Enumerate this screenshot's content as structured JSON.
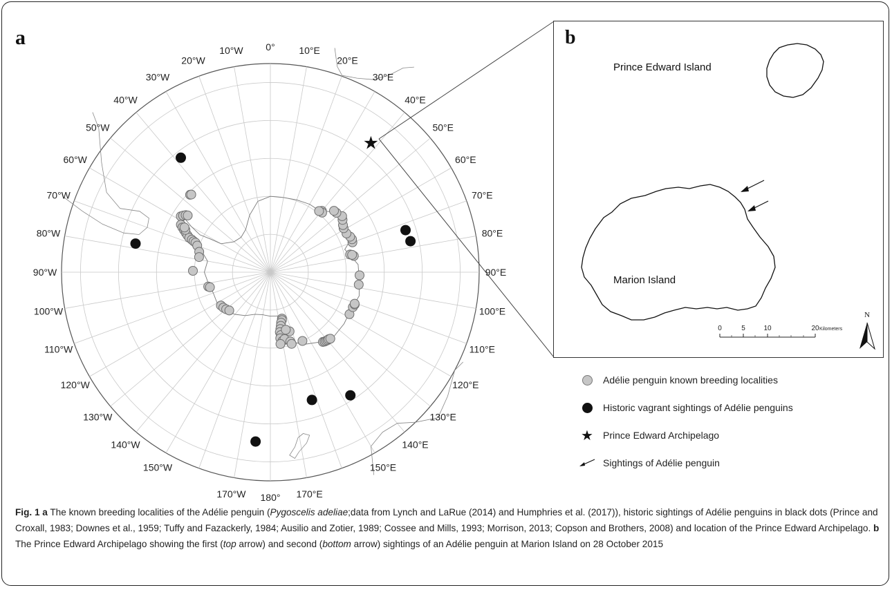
{
  "panel_a": {
    "letter": "a",
    "longitude_labels": [
      {
        "lon": 0,
        "text": "0°"
      },
      {
        "lon": 10,
        "text": "10°E"
      },
      {
        "lon": 20,
        "text": "20°E"
      },
      {
        "lon": 30,
        "text": "30°E"
      },
      {
        "lon": 40,
        "text": "40°E"
      },
      {
        "lon": 50,
        "text": "50°E"
      },
      {
        "lon": 60,
        "text": "60°E"
      },
      {
        "lon": 70,
        "text": "70°E"
      },
      {
        "lon": 80,
        "text": "80°E"
      },
      {
        "lon": 90,
        "text": "90°E"
      },
      {
        "lon": 100,
        "text": "100°E"
      },
      {
        "lon": 110,
        "text": "110°E"
      },
      {
        "lon": 120,
        "text": "120°E"
      },
      {
        "lon": 130,
        "text": "130°E"
      },
      {
        "lon": 140,
        "text": "140°E"
      },
      {
        "lon": 150,
        "text": "150°E"
      },
      {
        "lon": 170,
        "text": "170°E"
      },
      {
        "lon": 180,
        "text": "180°"
      },
      {
        "lon": -170,
        "text": "170°W"
      },
      {
        "lon": -150,
        "text": "150°W"
      },
      {
        "lon": -140,
        "text": "140°W"
      },
      {
        "lon": -130,
        "text": "130°W"
      },
      {
        "lon": -120,
        "text": "120°W"
      },
      {
        "lon": -110,
        "text": "110°W"
      },
      {
        "lon": -100,
        "text": "100°W"
      },
      {
        "lon": -90,
        "text": "90°W"
      },
      {
        "lon": -80,
        "text": "80°W"
      },
      {
        "lon": -70,
        "text": "70°W"
      },
      {
        "lon": -60,
        "text": "60°W"
      },
      {
        "lon": -50,
        "text": "50°W"
      },
      {
        "lon": -40,
        "text": "40°W"
      },
      {
        "lon": -30,
        "text": "30°W"
      },
      {
        "lon": -20,
        "text": "20°W"
      },
      {
        "lon": -10,
        "text": "10°W"
      }
    ],
    "breeding_localities": [
      {
        "lon": -58,
        "lat": -62.2
      },
      {
        "lon": -57,
        "lat": -62.6
      },
      {
        "lon": -56,
        "lat": -63.1
      },
      {
        "lon": -55.5,
        "lat": -63.6
      },
      {
        "lon": -46,
        "lat": -60.6
      },
      {
        "lon": -45.5,
        "lat": -60.8
      },
      {
        "lon": -62,
        "lat": -63.3
      },
      {
        "lon": -63,
        "lat": -64.0
      },
      {
        "lon": -64,
        "lat": -64.7
      },
      {
        "lon": -65,
        "lat": -65.4
      },
      {
        "lon": -66,
        "lat": -66.1
      },
      {
        "lon": -67,
        "lat": -66.8
      },
      {
        "lon": -67.5,
        "lat": -67.6
      },
      {
        "lon": -68,
        "lat": -68.2
      },
      {
        "lon": -68.5,
        "lat": -68.8
      },
      {
        "lon": -70,
        "lat": -69.5
      },
      {
        "lon": -74,
        "lat": -70.5
      },
      {
        "lon": -78,
        "lat": -70.8
      },
      {
        "lon": -63.5,
        "lat": -65.0
      },
      {
        "lon": -62.5,
        "lat": -64.5
      },
      {
        "lon": -89,
        "lat": -69.6
      },
      {
        "lon": -103,
        "lat": -73.2
      },
      {
        "lon": -104,
        "lat": -73.6
      },
      {
        "lon": -124,
        "lat": -74.3
      },
      {
        "lon": -127,
        "lat": -74.5
      },
      {
        "lon": -130,
        "lat": -74.8
      },
      {
        "lon": -133,
        "lat": -75.2
      },
      {
        "lon": 166,
        "lat": -77.4
      },
      {
        "lon": 166.5,
        "lat": -77.0
      },
      {
        "lon": 168,
        "lat": -76.4
      },
      {
        "lon": 169,
        "lat": -75.6
      },
      {
        "lon": 170,
        "lat": -74.8
      },
      {
        "lon": 171,
        "lat": -74.0
      },
      {
        "lon": 170.5,
        "lat": -73.2
      },
      {
        "lon": 171.5,
        "lat": -72.4
      },
      {
        "lon": 170,
        "lat": -71.6
      },
      {
        "lon": 168,
        "lat": -72.0
      },
      {
        "lon": 172,
        "lat": -70.9
      },
      {
        "lon": 164,
        "lat": -71.0
      },
      {
        "lon": 163.5,
        "lat": -70.3
      },
      {
        "lon": 162,
        "lat": -73.6
      },
      {
        "lon": 165,
        "lat": -74.3
      },
      {
        "lon": 155,
        "lat": -70.0
      },
      {
        "lon": 143,
        "lat": -67.0
      },
      {
        "lon": 142,
        "lat": -66.8
      },
      {
        "lon": 141,
        "lat": -66.7
      },
      {
        "lon": 140,
        "lat": -66.6
      },
      {
        "lon": 139,
        "lat": -66.6
      },
      {
        "lon": 138,
        "lat": -66.4
      },
      {
        "lon": 118,
        "lat": -66.4
      },
      {
        "lon": 113,
        "lat": -66.4
      },
      {
        "lon": 111,
        "lat": -66.2
      },
      {
        "lon": 110.5,
        "lat": -66.3
      },
      {
        "lon": 98,
        "lat": -66.5
      },
      {
        "lon": 92,
        "lat": -66.5
      },
      {
        "lon": 79,
        "lat": -67.6
      },
      {
        "lon": 77.5,
        "lat": -68.5
      },
      {
        "lon": 78,
        "lat": -68.0
      },
      {
        "lon": 70,
        "lat": -67.0
      },
      {
        "lon": 68,
        "lat": -66.8
      },
      {
        "lon": 66,
        "lat": -67.0
      },
      {
        "lon": 63,
        "lat": -67.5
      },
      {
        "lon": 59,
        "lat": -67.5
      },
      {
        "lon": 57,
        "lat": -67.2
      },
      {
        "lon": 54,
        "lat": -66.5
      },
      {
        "lon": 52,
        "lat": -66.0
      },
      {
        "lon": 48,
        "lat": -66.6
      },
      {
        "lon": 46,
        "lat": -66.7
      },
      {
        "lon": 40,
        "lat": -68.9
      },
      {
        "lon": 41,
        "lat": -69.2
      },
      {
        "lon": 38.5,
        "lat": -69.4
      }
    ],
    "vagrant_sightings": [
      {
        "lon": -38,
        "lat": -51.7
      },
      {
        "lon": -78,
        "lat": -53.7
      },
      {
        "lon": 72.7,
        "lat": -52.7
      },
      {
        "lon": 77.5,
        "lat": -52.2
      },
      {
        "lon": 162,
        "lat": -54.6
      },
      {
        "lon": 147,
        "lat": -51.3
      },
      {
        "lon": -175,
        "lat": -45.2
      }
    ],
    "archipelago": {
      "lon": 37.8,
      "lat": -46.8
    },
    "star_glyph": "★"
  },
  "panel_b": {
    "letter": "b",
    "prince_edward_label": "Prince Edward Island",
    "marion_label": "Marion Island",
    "scale_ticks": [
      "0",
      "5",
      "10",
      "20"
    ],
    "scale_unit": "Kilometers",
    "north_label": "N"
  },
  "legend": {
    "items": [
      {
        "symbol": "grey-dot",
        "label": "Adélie penguin known breeding localities"
      },
      {
        "symbol": "black-dot",
        "label": "Historic vagrant sightings of Adélie penguins"
      },
      {
        "symbol": "star",
        "label": "Prince Edward Archipelago"
      },
      {
        "symbol": "arrow",
        "label": "Sightings of Adélie penguin"
      }
    ]
  },
  "caption": {
    "fig_label": "Fig. 1",
    "a_letter": "a",
    "text_1": " The known breeding localities of the Adélie penguin (",
    "species_italic": "Pygoscelis adeliae",
    "text_2": ";data from Lynch and LaRue (2014) and Humphries et al. (2017)), historic sightings of Adélie penguins in black dots (Prince and Croxall, 1983; Downes et al., 1959; Tuffy and Fazackerly, 1984; Ausilio and Zotier, 1989; Cossee and Mills, 1993; Morrison, 2013; Copson and Brothers, 2008) and location of the Prince Edward Archipelago. ",
    "b_letter": "b",
    "text_3": " The Prince Edward Archipelago showing the first (",
    "top_italic": "top",
    "text_4": " arrow) and second (",
    "bottom_italic": "bottom",
    "text_5": " arrow) sightings of an Adélie penguin at Marion Island on 28 October 2015"
  }
}
